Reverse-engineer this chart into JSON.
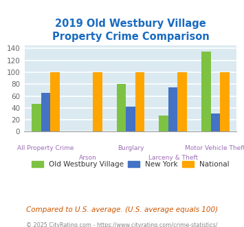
{
  "title_line1": "2019 Old Westbury Village",
  "title_line2": "Property Crime Comparison",
  "title_color": "#1a6bbf",
  "categories": [
    "All Property Crime",
    "Arson",
    "Burglary",
    "Larceny & Theft",
    "Motor Vehicle Theft"
  ],
  "series": {
    "Old Westbury Village": [
      47,
      0,
      80,
      27,
      135
    ],
    "New York": [
      65,
      0,
      42,
      75,
      30
    ],
    "National": [
      100,
      100,
      100,
      100,
      100
    ]
  },
  "colors": {
    "Old Westbury Village": "#7dc242",
    "New York": "#4472c4",
    "National": "#ffa500"
  },
  "ylim": [
    0,
    145
  ],
  "yticks": [
    0,
    20,
    40,
    60,
    80,
    100,
    120,
    140
  ],
  "background_color": "#ffffff",
  "plot_bg_color": "#daeaf0",
  "grid_color": "#ffffff",
  "xlabel_color": "#9b6db5",
  "footer_text": "Compared to U.S. average. (U.S. average equals 100)",
  "footer_color": "#cc5500",
  "credit_text": "© 2025 CityRating.com - https://www.cityrating.com/crime-statistics/",
  "credit_color": "#888888",
  "bar_width": 0.22
}
